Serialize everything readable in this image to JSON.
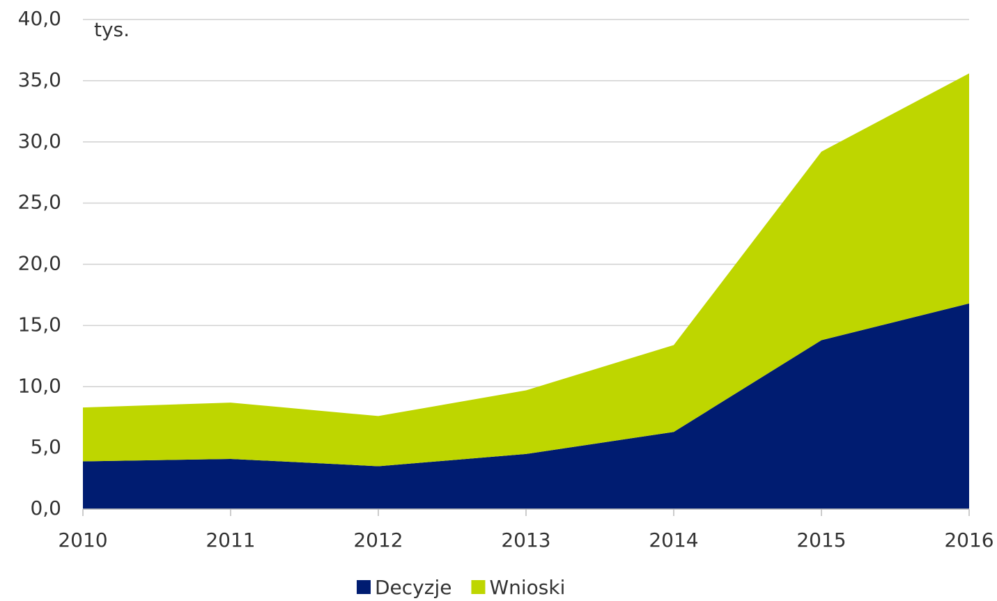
{
  "chart_data": {
    "type": "stacked-area",
    "annotation": "tys.",
    "categories": [
      "2010",
      "2011",
      "2012",
      "2013",
      "2014",
      "2015",
      "2016"
    ],
    "series": [
      {
        "name": "Decyzje",
        "color": "#001c71",
        "values": [
          3.9,
          4.1,
          3.5,
          4.5,
          6.3,
          13.8,
          16.8
        ]
      },
      {
        "name": "Wnioski",
        "color": "#bed600",
        "values": [
          4.4,
          4.6,
          4.1,
          5.2,
          7.1,
          15.4,
          18.8
        ]
      }
    ],
    "ylim": [
      0,
      40
    ],
    "yticks": [
      {
        "value": 0,
        "label": "0,0"
      },
      {
        "value": 5,
        "label": "5,0"
      },
      {
        "value": 10,
        "label": "10,0"
      },
      {
        "value": 15,
        "label": "15,0"
      },
      {
        "value": 20,
        "label": "20,0"
      },
      {
        "value": 25,
        "label": "25,0"
      },
      {
        "value": 30,
        "label": "30,0"
      },
      {
        "value": 35,
        "label": "35,0"
      },
      {
        "value": 40,
        "label": "40,0"
      }
    ],
    "grid": true,
    "legend": "bottom"
  }
}
